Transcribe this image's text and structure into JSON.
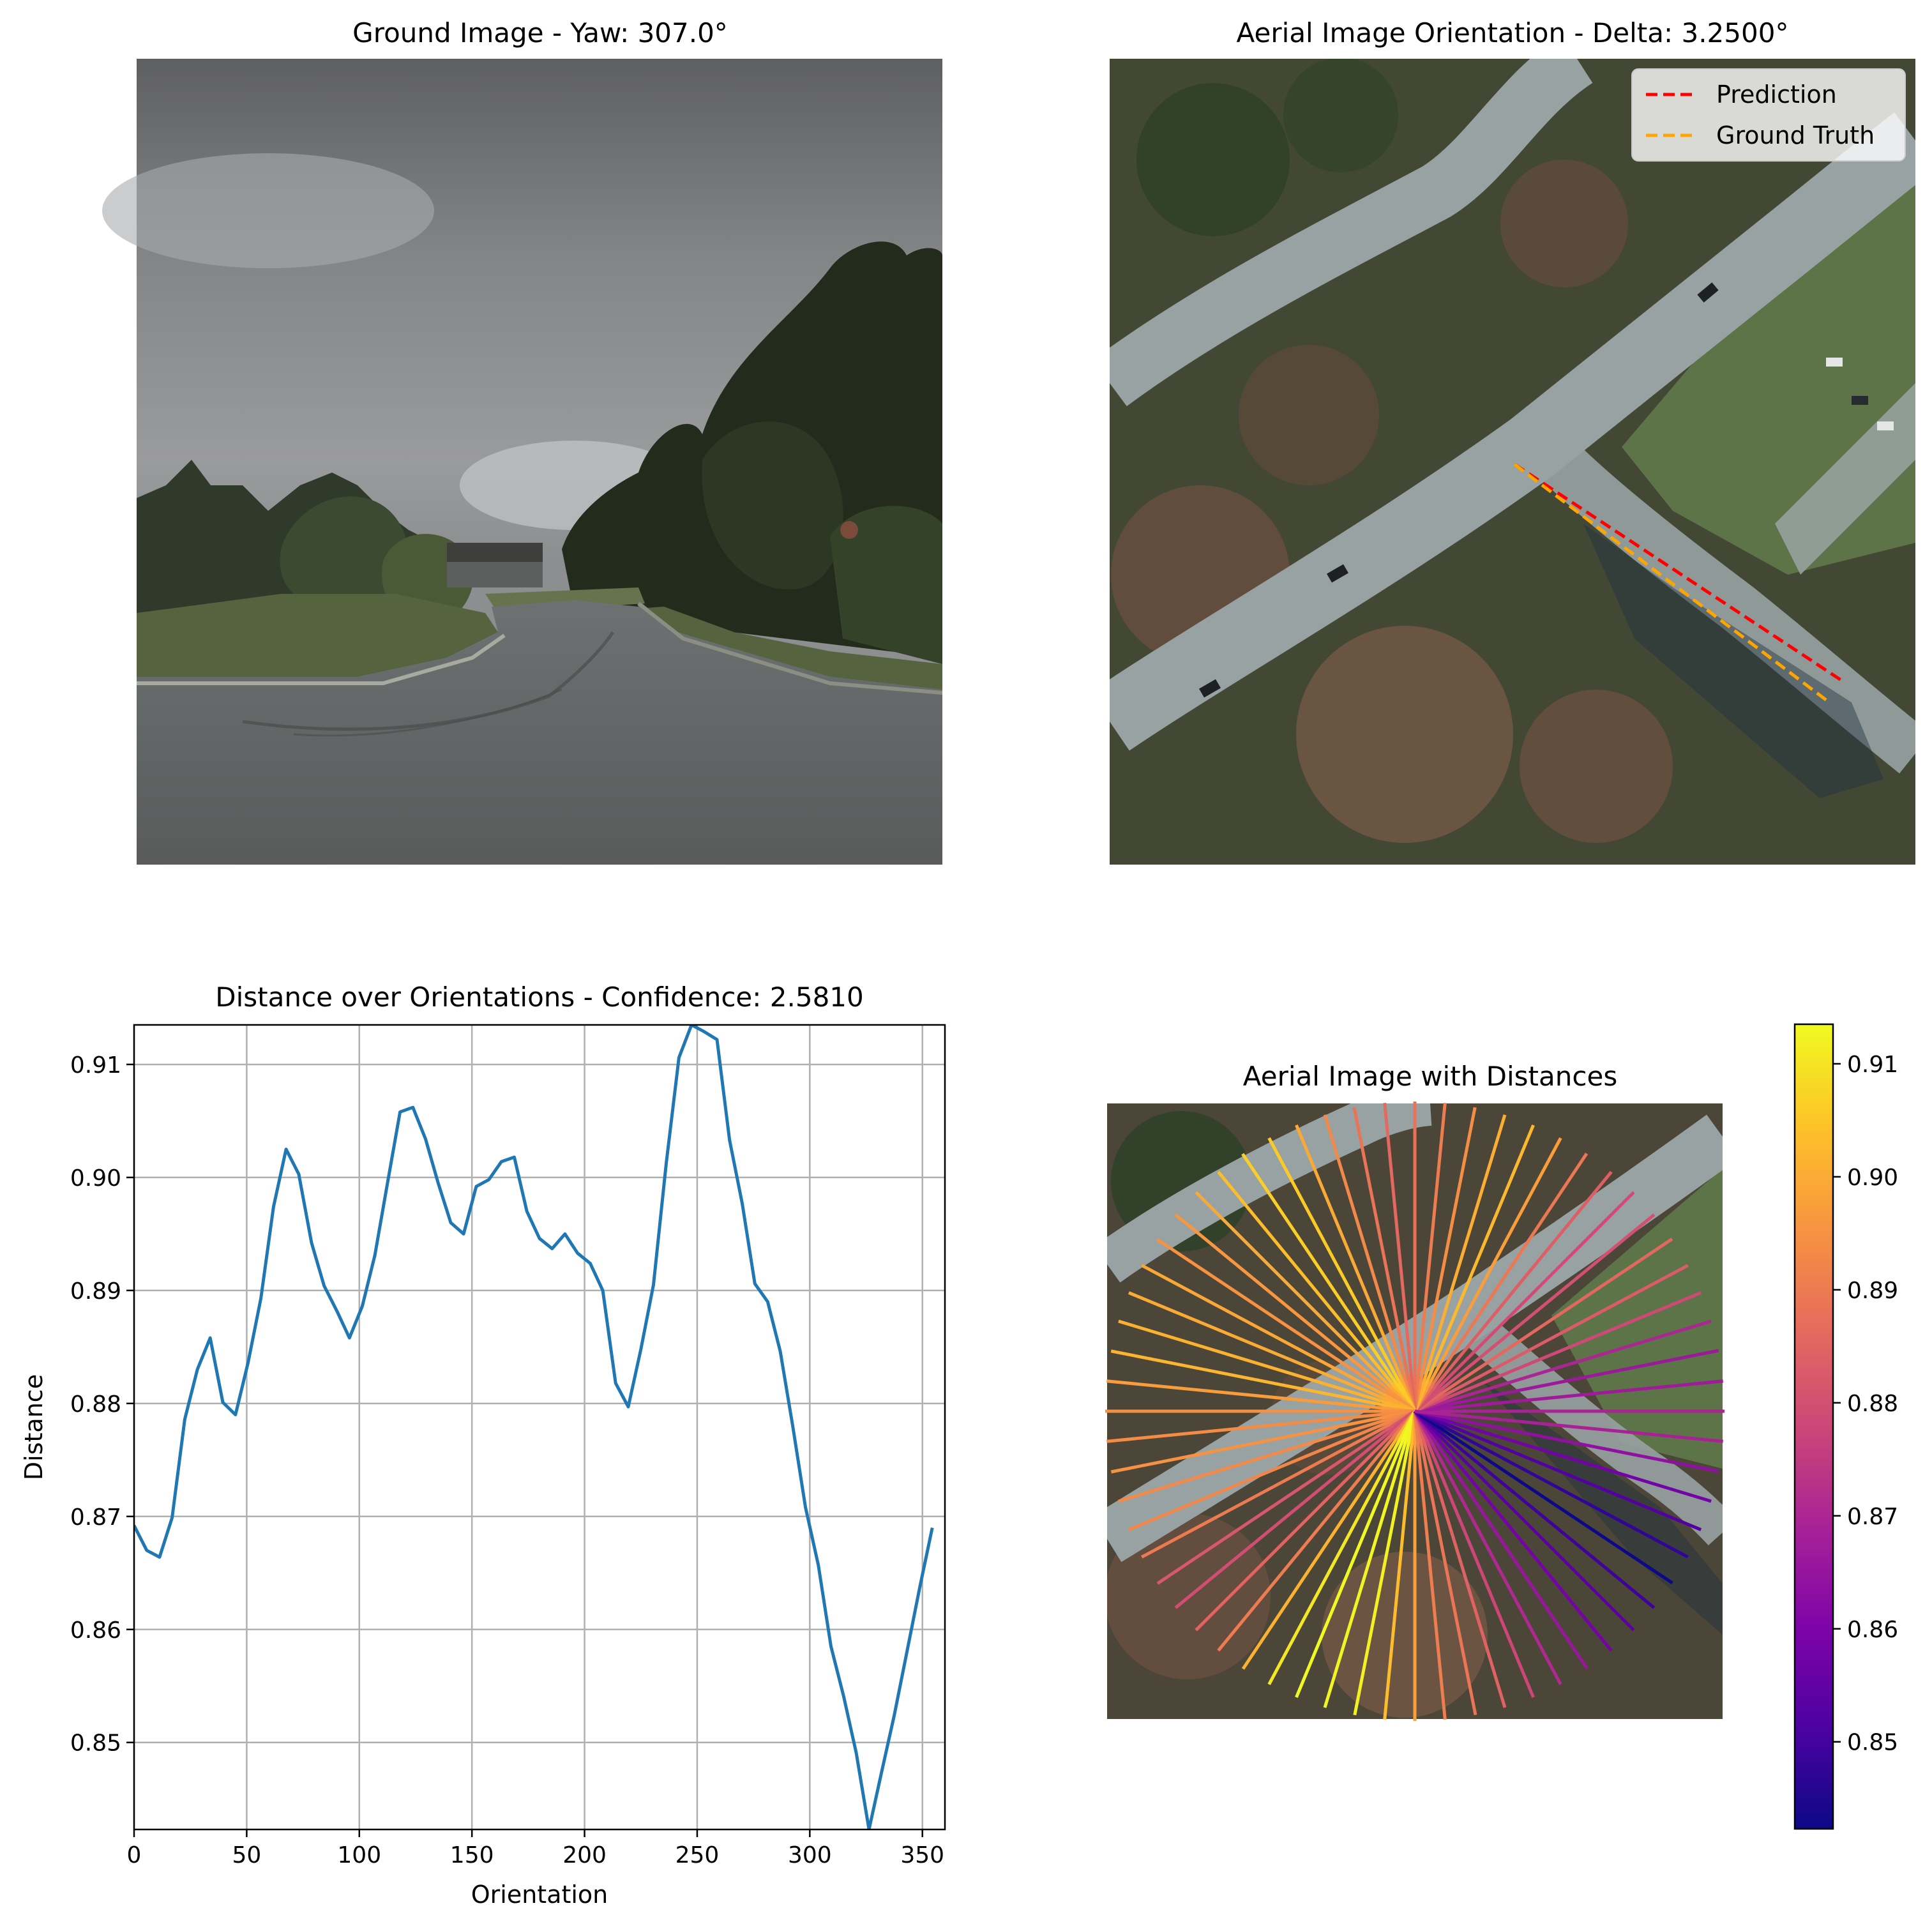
{
  "panels": {
    "ground": {
      "title": "Ground Image - Yaw: 307.0°"
    },
    "aerial": {
      "title": "Aerial Image Orientation - Delta: 3.2500°",
      "legend": [
        {
          "label": "Prediction",
          "color": "#ff0000"
        },
        {
          "label": "Ground Truth",
          "color": "#ffa500"
        }
      ],
      "prediction_deg": 310.25,
      "ground_truth_deg": 307.0
    },
    "rays": {
      "title": "Aerial Image with Distances",
      "colormap": "plasma",
      "colorbar_ticks": [
        "0.85",
        "0.86",
        "0.87",
        "0.88",
        "0.89",
        "0.90",
        "0.91"
      ],
      "colorbar_range": [
        0.8423,
        0.9135
      ]
    }
  },
  "chart_data": {
    "type": "line",
    "title": "Distance over Orientations - Confidence: 2.5810",
    "xlabel": "Orientation",
    "ylabel": "Distance",
    "xlim": [
      0,
      360
    ],
    "ylim": [
      0.8423,
      0.9135
    ],
    "grid": true,
    "line_color": "#1f77b4",
    "x_ticks": [
      "0",
      "50",
      "100",
      "150",
      "200",
      "250",
      "300",
      "350"
    ],
    "y_ticks": [
      "0.85",
      "0.86",
      "0.87",
      "0.88",
      "0.89",
      "0.90",
      "0.91"
    ],
    "x": [
      0,
      5.6,
      11.3,
      16.9,
      22.5,
      28.1,
      33.8,
      39.4,
      45,
      50.6,
      56.3,
      61.9,
      67.5,
      73.1,
      78.8,
      84.4,
      90,
      95.6,
      101.3,
      106.9,
      112.5,
      118.1,
      123.8,
      129.4,
      135,
      140.6,
      146.3,
      151.9,
      157.5,
      163.1,
      168.8,
      174.4,
      180,
      185.6,
      191.3,
      196.9,
      202.5,
      208.1,
      213.8,
      219.4,
      225,
      230.6,
      236.3,
      241.9,
      247.5,
      253.1,
      258.8,
      264.4,
      270,
      275.6,
      281.3,
      286.9,
      292.5,
      298.1,
      303.8,
      309.4,
      315,
      320.6,
      326.3,
      331.9,
      337.5,
      343.1,
      348.8,
      354.4
    ],
    "y": [
      0.8692,
      0.867,
      0.8664,
      0.8699,
      0.8786,
      0.883,
      0.8858,
      0.8801,
      0.879,
      0.8836,
      0.8893,
      0.8974,
      0.9025,
      0.9003,
      0.8942,
      0.8904,
      0.8882,
      0.8858,
      0.8886,
      0.8931,
      0.8995,
      0.9058,
      0.9062,
      0.9034,
      0.8995,
      0.896,
      0.895,
      0.8992,
      0.8998,
      0.9014,
      0.9018,
      0.897,
      0.8946,
      0.8937,
      0.895,
      0.8933,
      0.8924,
      0.89,
      0.8818,
      0.8797,
      0.8848,
      0.8905,
      0.9013,
      0.9106,
      0.9135,
      0.9129,
      0.9122,
      0.9033,
      0.8977,
      0.8906,
      0.889,
      0.8846,
      0.8779,
      0.8708,
      0.8657,
      0.8585,
      0.8541,
      0.8491,
      0.8423,
      0.8474,
      0.8524,
      0.858,
      0.8637,
      0.869
    ]
  }
}
